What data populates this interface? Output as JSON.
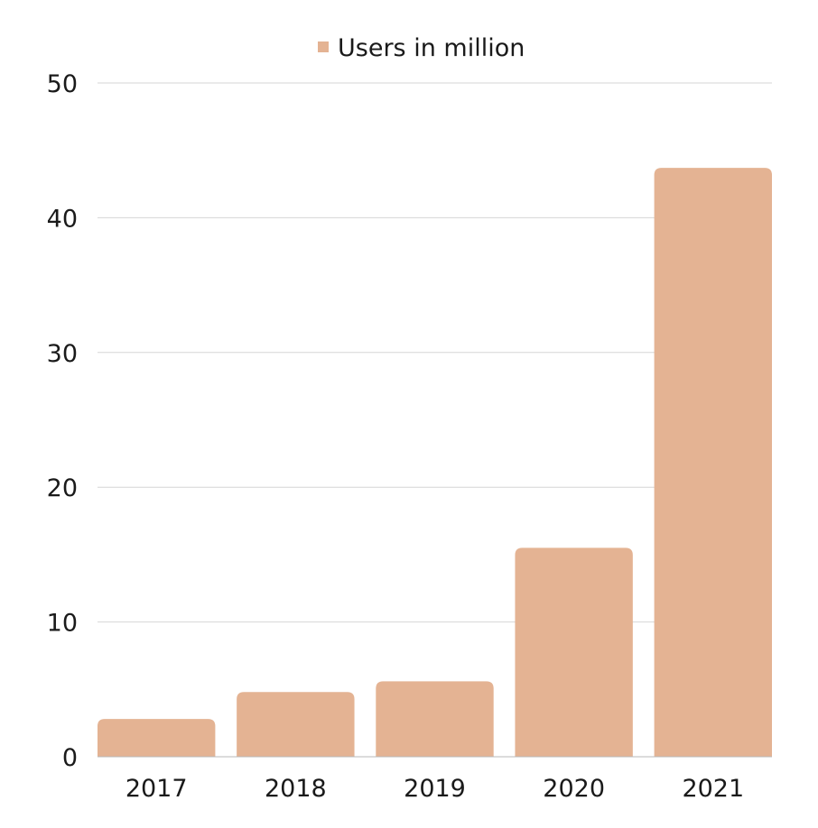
{
  "chart_data": {
    "type": "bar",
    "categories": [
      "2017",
      "2018",
      "2019",
      "2020",
      "2021"
    ],
    "series": [
      {
        "name": "Users in million",
        "values": [
          2.8,
          4.8,
          5.6,
          15.5,
          43.7
        ],
        "color": "#e4b393"
      }
    ],
    "ylim": [
      0,
      50
    ],
    "yticks": [
      0,
      10,
      20,
      30,
      40,
      50
    ],
    "grid": true,
    "legend_position": "top-center",
    "title": "",
    "xlabel": "",
    "ylabel": ""
  }
}
